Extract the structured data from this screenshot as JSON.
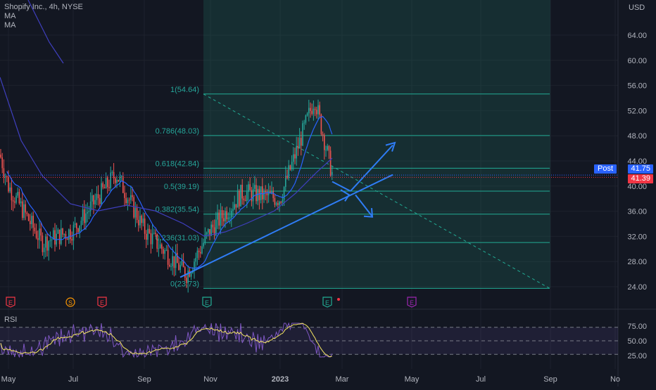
{
  "header": {
    "symbol_line": "Shopify Inc., 4h, NYSE",
    "indicator_1": "MA",
    "indicator_2": "MA",
    "currency": "USD"
  },
  "price_axis": {
    "ticks": [
      "64.00",
      "60.00",
      "56.00",
      "52.00",
      "48.00",
      "44.00",
      "40.00",
      "36.00",
      "32.00",
      "28.00",
      "24.00"
    ],
    "post_label": "Post",
    "post_price": "41.75",
    "last_price": "41.39",
    "post_color": "#2962ff",
    "last_color": "#f23645"
  },
  "time_axis": {
    "ticks": [
      "May",
      "Jul",
      "Sep",
      "Nov",
      "2023",
      "Mar",
      "May",
      "Jul",
      "Sep",
      "No"
    ]
  },
  "fibonacci": {
    "levels": [
      "1(54.64)",
      "0.786(48.03)",
      "0.618(42.84)",
      "0.5(39.19)",
      "0.382(35.54)",
      "0.236(31.03)",
      "0(23.73)"
    ],
    "values": [
      54.64,
      48.03,
      42.84,
      39.19,
      35.54,
      31.03,
      23.73
    ],
    "color": "#22ab94"
  },
  "events": [
    {
      "letter": "E",
      "color": "#f23645"
    },
    {
      "letter": "S",
      "color": "#ff9800"
    },
    {
      "letter": "E",
      "color": "#f23645"
    },
    {
      "letter": "E",
      "color": "#22ab94"
    },
    {
      "letter": "E",
      "color": "#22ab94"
    },
    {
      "letter": "E",
      "color": "#9c27b0"
    }
  ],
  "rsi": {
    "label": "RSI",
    "ticks": [
      "75.00",
      "50.00",
      "25.00"
    ],
    "line_color": "#7e57c2",
    "ma_color": "#f5e663"
  },
  "colors": {
    "background": "#131722",
    "up_candle": "#26a69a",
    "down_candle": "#ef5350",
    "ma_fast": "#2962ff",
    "ma_slow": "#3f3fbf",
    "drawing": "#2f7df6"
  },
  "chart_data": {
    "type": "candlestick",
    "title": "Shopify Inc., 4h, NYSE",
    "ylim": [
      22,
      67
    ],
    "y_ticks": [
      24,
      28,
      32,
      36,
      40,
      44,
      48,
      52,
      56,
      60,
      64
    ],
    "x_ticks": [
      "May",
      "Jul",
      "Sep",
      "Nov",
      "2023",
      "Mar",
      "May",
      "Jul",
      "Sep",
      "No"
    ],
    "price_path": [
      {
        "t": "Apr",
        "close": 45
      },
      {
        "t": "May",
        "close": 40
      },
      {
        "t": "Jun",
        "close": 33
      },
      {
        "t": "Jul",
        "close": 33
      },
      {
        "t": "Aug",
        "close": 43
      },
      {
        "t": "Sep",
        "close": 33
      },
      {
        "t": "Oct",
        "close": 26
      },
      {
        "t": "Nov",
        "close": 33
      },
      {
        "t": "Dec",
        "close": 38
      },
      {
        "t": "Jan",
        "close": 38
      },
      {
        "t": "Feb",
        "close": 54
      },
      {
        "t": "Feb",
        "close": 41.39
      }
    ],
    "last_price": 41.39,
    "post_price": 41.75,
    "rsi_levels": [
      70,
      50,
      30
    ]
  }
}
